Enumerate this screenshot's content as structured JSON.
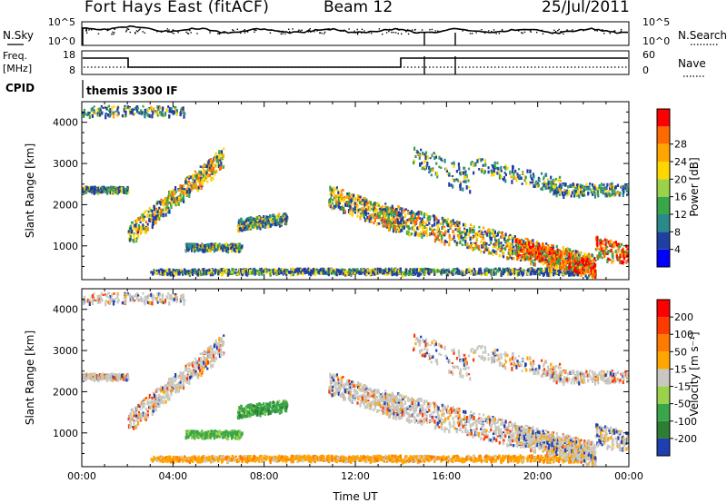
{
  "header": {
    "title": "Fort Hays East (fitACF)",
    "beam": "Beam 12",
    "date": "25/Jul/2011"
  },
  "status_labels": {
    "nsky": "N.Sky",
    "nsearch": "N.Search",
    "freq": "Freq.",
    "freq_unit": "[MHz]",
    "nave": "Nave",
    "cpid": "CPID",
    "cpid_value": "themis 3300 IF"
  },
  "nsky_axis": {
    "top": "10^5",
    "bottom": "10^0"
  },
  "nsearch_axis": {
    "top": "10^5",
    "bottom": "10^0"
  },
  "freq_axis": {
    "top": "18",
    "bottom": "8"
  },
  "nave_axis": {
    "top": "60",
    "bottom": "0"
  },
  "chart_data": [
    {
      "type": "heatmap",
      "quantity": "power",
      "ylabel": "Slant Range [km]",
      "xlabel": "",
      "ylim": [
        180,
        4500
      ],
      "yticks": [
        "1000",
        "2000",
        "3000",
        "4000"
      ],
      "colorbar": {
        "label": "Power [dB]",
        "ticks": [
          "4",
          "8",
          "12",
          "16",
          "20",
          "24",
          "28"
        ],
        "colors": [
          "#0000ff",
          "#1f3fa3",
          "#2a8a8a",
          "#3aa64a",
          "#9ad24a",
          "#ffd700",
          "#ffa500",
          "#ff6a00",
          "#ff0000"
        ]
      }
    },
    {
      "type": "heatmap",
      "quantity": "velocity",
      "ylabel": "Slant Range [km]",
      "xlabel": "Time UT",
      "ylim": [
        180,
        4500
      ],
      "yticks": [
        "1000",
        "2000",
        "3000",
        "4000"
      ],
      "xticks": [
        "00:00",
        "04:00",
        "08:00",
        "12:00",
        "16:00",
        "20:00",
        "00:00"
      ],
      "colorbar": {
        "label": "Velocity [m s⁻¹]",
        "ticks": [
          "200",
          "100",
          "50",
          "15",
          "-15",
          "-50",
          "-100",
          "-200"
        ],
        "colors": [
          "#1f3fb0",
          "#2e7d32",
          "#3aa64a",
          "#9ad24a",
          "#c8c8c0",
          "#ffa500",
          "#ff7a00",
          "#ff3a00",
          "#ff0000"
        ]
      }
    }
  ]
}
